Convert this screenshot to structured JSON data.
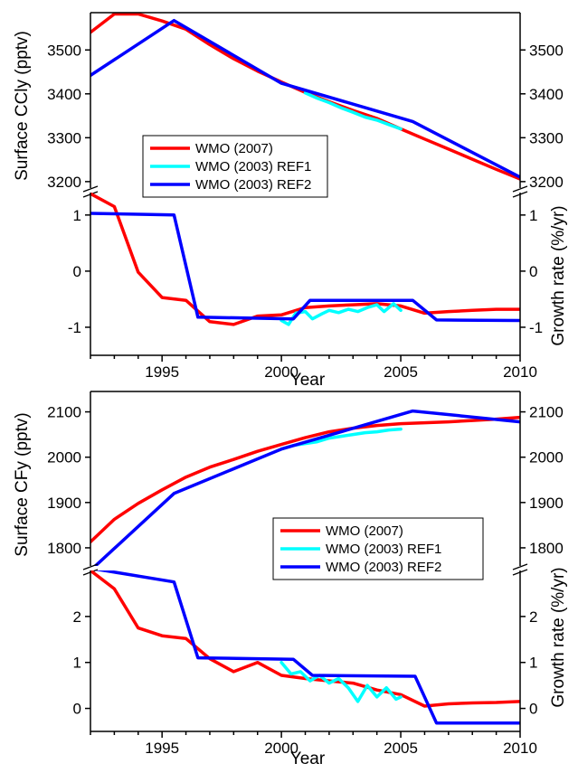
{
  "figure": {
    "top": {
      "left_ylabel_upper": "Surface CCly (pptv)",
      "right_ylabel_lower": "Growth rate (%/yr)",
      "xlabel": "Year"
    },
    "bottom": {
      "left_ylabel_upper": "Surface CFy (pptv)",
      "right_ylabel_lower": "Growth rate (%/yr)",
      "xlabel": "Year"
    }
  },
  "chart_data": [
    {
      "type": "line",
      "panel": "Surface CCly",
      "ylabel": "Surface CCly (pptv)",
      "xlabel": "Year",
      "xlim": [
        1992,
        2010
      ],
      "ylim": [
        3175,
        3585
      ],
      "xticks": [
        1995,
        2000,
        2005,
        2010
      ],
      "yticks": [
        3200,
        3300,
        3400,
        3500
      ],
      "legend": "center-left",
      "colors": {
        "WMO (2007)": "#ff0000",
        "WMO (2003) REF1": "#00ffff",
        "WMO (2003) REF2": "#0000ff"
      },
      "series": [
        {
          "name": "WMO (2007)",
          "x": [
            1992,
            1993,
            1994,
            1995,
            1996,
            1997,
            1998,
            1999,
            2000,
            2001,
            2002,
            2003,
            2004,
            2005,
            2006,
            2007,
            2008,
            2009,
            2010
          ],
          "y": [
            3540,
            3582,
            3582,
            3566,
            3547,
            3512,
            3480,
            3452,
            3427,
            3403,
            3382,
            3362,
            3344,
            3320,
            3297,
            3274,
            3251,
            3228,
            3206
          ]
        },
        {
          "name": "WMO (2003) REF1",
          "x": [
            2001,
            2001.5,
            2002,
            2002.5,
            2003,
            2003.5,
            2004,
            2004.5,
            2005
          ],
          "y": [
            3402,
            3390,
            3380,
            3368,
            3358,
            3347,
            3340,
            3330,
            3320
          ]
        },
        {
          "name": "WMO (2003) REF2",
          "x": [
            1992,
            1995.5,
            2000,
            2005.5,
            2010
          ],
          "y": [
            3442,
            3567,
            3424,
            3337,
            3210
          ]
        }
      ]
    },
    {
      "type": "line",
      "panel": "CCly growth rate",
      "ylabel": "Growth rate (%/yr)",
      "xlabel": "Year",
      "xlim": [
        1992,
        2010
      ],
      "ylim": [
        -1.5,
        1.4
      ],
      "xticks": [
        1995,
        2000,
        2005,
        2010
      ],
      "yticks": [
        -1,
        0,
        1
      ],
      "series": [
        {
          "name": "WMO (2007)",
          "x": [
            1992,
            1993,
            1994,
            1995,
            1996,
            1997,
            1998,
            1999,
            2000,
            2001,
            2002,
            2003,
            2004,
            2005,
            2006,
            2007,
            2008,
            2009,
            2010
          ],
          "y": [
            1.38,
            1.15,
            -0.02,
            -0.47,
            -0.52,
            -0.9,
            -0.95,
            -0.8,
            -0.78,
            -0.65,
            -0.62,
            -0.6,
            -0.58,
            -0.62,
            -0.75,
            -0.72,
            -0.7,
            -0.68,
            -0.68
          ]
        },
        {
          "name": "WMO (2003) REF1",
          "x": [
            2000,
            2000.3,
            2000.6,
            2001,
            2001.3,
            2001.7,
            2002,
            2002.4,
            2002.8,
            2003.2,
            2003.6,
            2004,
            2004.3,
            2004.7,
            2005
          ],
          "y": [
            -0.88,
            -0.95,
            -0.75,
            -0.72,
            -0.85,
            -0.76,
            -0.7,
            -0.74,
            -0.68,
            -0.72,
            -0.65,
            -0.6,
            -0.72,
            -0.58,
            -0.7
          ]
        },
        {
          "name": "WMO (2003) REF2",
          "x": [
            1992,
            1995.5,
            1996.5,
            2000.5,
            2001.2,
            2005.5,
            2006.5,
            2010
          ],
          "y": [
            1.03,
            1.0,
            -0.82,
            -0.85,
            -0.52,
            -0.52,
            -0.87,
            -0.88
          ]
        }
      ]
    },
    {
      "type": "line",
      "panel": "Surface CFy",
      "ylabel": "Surface CFy (pptv)",
      "xlabel": "Year",
      "xlim": [
        1992,
        2010
      ],
      "ylim": [
        1750,
        2145
      ],
      "xticks": [
        1995,
        2000,
        2005,
        2010
      ],
      "yticks": [
        1800,
        1900,
        2000,
        2100
      ],
      "legend": "center-right",
      "colors": {
        "WMO (2007)": "#ff0000",
        "WMO (2003) REF1": "#00ffff",
        "WMO (2003) REF2": "#0000ff"
      },
      "series": [
        {
          "name": "WMO (2007)",
          "x": [
            1992,
            1993,
            1994,
            1995,
            1996,
            1997,
            1998,
            1999,
            2000,
            2001,
            2002,
            2003,
            2004,
            2005,
            2006,
            2007,
            2008,
            2009,
            2010
          ],
          "y": [
            1813,
            1863,
            1898,
            1928,
            1956,
            1978,
            1995,
            2013,
            2028,
            2043,
            2056,
            2064,
            2070,
            2074,
            2076,
            2078,
            2081,
            2084,
            2088
          ]
        },
        {
          "name": "WMO (2003) REF1",
          "x": [
            2000,
            2000.5,
            2001,
            2001.5,
            2002,
            2002.5,
            2003,
            2003.5,
            2004,
            2004.5,
            2005
          ],
          "y": [
            2018,
            2026,
            2030,
            2034,
            2042,
            2046,
            2050,
            2054,
            2056,
            2060,
            2062
          ]
        },
        {
          "name": "WMO (2003) REF2",
          "x": [
            1992,
            1995.5,
            2000,
            2005.5,
            2010
          ],
          "y": [
            1750,
            1920,
            2018,
            2102,
            2078
          ]
        }
      ]
    },
    {
      "type": "line",
      "panel": "CFy growth rate",
      "ylabel": "Growth rate (%/yr)",
      "xlabel": "Year",
      "xlim": [
        1992,
        2010
      ],
      "ylim": [
        -0.5,
        3.0
      ],
      "xticks": [
        1995,
        2000,
        2005,
        2010
      ],
      "yticks": [
        0,
        1,
        2
      ],
      "series": [
        {
          "name": "WMO (2007)",
          "x": [
            1992,
            1993,
            1994,
            1995,
            1996,
            1997,
            1998,
            1999,
            2000,
            2001,
            2002,
            2003,
            2004,
            2005,
            2006,
            2007,
            2008,
            2009,
            2010
          ],
          "y": [
            3.0,
            2.6,
            1.75,
            1.58,
            1.52,
            1.08,
            0.8,
            1.0,
            0.72,
            0.65,
            0.6,
            0.55,
            0.4,
            0.3,
            0.05,
            0.1,
            0.12,
            0.13,
            0.15
          ]
        },
        {
          "name": "WMO (2003) REF1",
          "x": [
            2000,
            2000.4,
            2000.8,
            2001.2,
            2001.6,
            2002,
            2002.4,
            2002.8,
            2003.2,
            2003.6,
            2004,
            2004.4,
            2004.8,
            2005
          ],
          "y": [
            1.0,
            0.75,
            0.8,
            0.6,
            0.72,
            0.55,
            0.65,
            0.45,
            0.15,
            0.5,
            0.25,
            0.45,
            0.2,
            0.25
          ]
        },
        {
          "name": "WMO (2003) REF2",
          "x": [
            1992,
            1995.5,
            1996.5,
            2000.5,
            2001.3,
            2005.6,
            2006.5,
            2010
          ],
          "y": [
            3.05,
            2.75,
            1.1,
            1.07,
            0.72,
            0.7,
            -0.32,
            -0.32
          ]
        }
      ]
    }
  ]
}
